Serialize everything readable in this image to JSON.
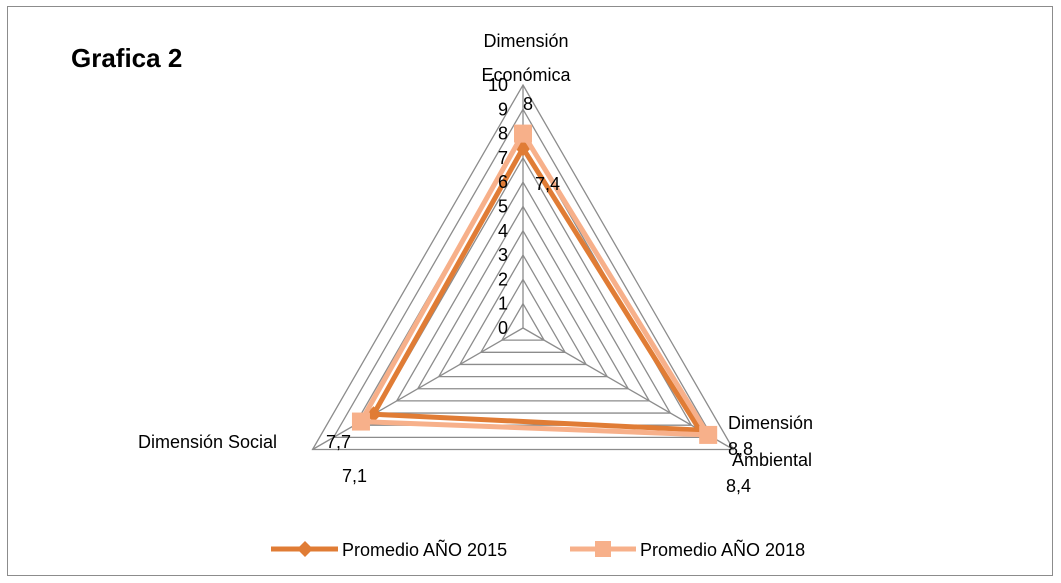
{
  "chart_data": {
    "type": "radar",
    "title": "Grafica 2",
    "axes": [
      {
        "line1": "Dimensión",
        "line2": "Económica"
      },
      {
        "line1": "Dimensión",
        "line2": "Ambiental"
      },
      {
        "line1": "Dimensión Social",
        "line2": ""
      }
    ],
    "rlim": [
      0,
      10
    ],
    "r_ticks": [
      "0",
      "1",
      "2",
      "3",
      "4",
      "5",
      "6",
      "7",
      "8",
      "9",
      "10"
    ],
    "grid": true,
    "legend_position": "bottom",
    "series": [
      {
        "name": "Promedio AÑO 2015",
        "marker": "diamond",
        "color": "#E07C35",
        "values": [
          7.4,
          8.4,
          7.1
        ],
        "labels": [
          "7,4",
          "8,4",
          "7,1"
        ]
      },
      {
        "name": "Promedio AÑO 2018",
        "marker": "square",
        "color": "#F7B08A",
        "values": [
          8,
          8.8,
          7.7
        ],
        "labels": [
          "8",
          "8,8",
          "7,7"
        ]
      }
    ]
  },
  "colors": {
    "grid": "#8c8c8c",
    "frame": "#8c8c8c"
  }
}
